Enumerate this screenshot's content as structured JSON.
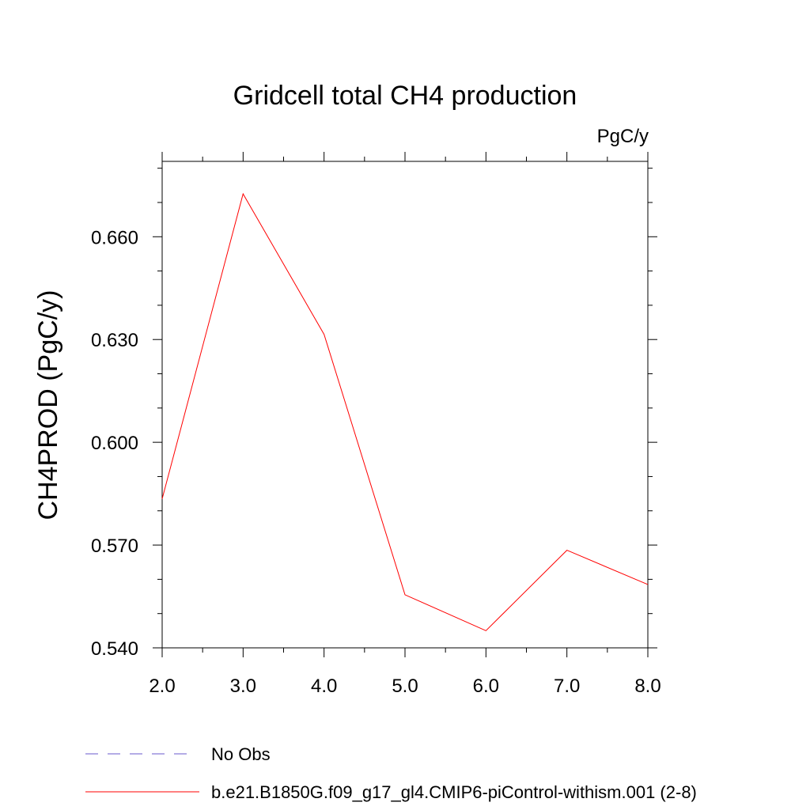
{
  "chart_data": {
    "type": "line",
    "title": "Gridcell total CH4 production",
    "units_label": "PgC/y",
    "ylabel": "CH4PROD  (PgC/y)",
    "xlabel": "",
    "xlim": [
      2.0,
      8.0
    ],
    "ylim": [
      0.54,
      0.682
    ],
    "x_ticks": [
      "2.0",
      "3.0",
      "4.0",
      "5.0",
      "6.0",
      "7.0",
      "8.0"
    ],
    "y_ticks": [
      "0.540",
      "0.570",
      "0.600",
      "0.630",
      "0.660"
    ],
    "grid": false,
    "legend_position": "bottom",
    "series": [
      {
        "name": "b.e21.B1850G.f09_g17_gl4.CMIP6-piControl-withism.001 (2-8)",
        "color": "#ff0000",
        "style": "solid",
        "x": [
          2.0,
          3.0,
          4.0,
          5.0,
          6.0,
          7.0,
          8.0
        ],
        "y": [
          0.5835,
          0.6725,
          0.6315,
          0.5555,
          0.545,
          0.5685,
          0.5585
        ]
      }
    ],
    "legend": [
      {
        "label": "No Obs",
        "color": "#6a5acd",
        "style": "dashed"
      },
      {
        "label": "b.e21.B1850G.f09_g17_gl4.CMIP6-piControl-withism.001 (2-8)",
        "color": "#ff0000",
        "style": "solid"
      }
    ]
  }
}
